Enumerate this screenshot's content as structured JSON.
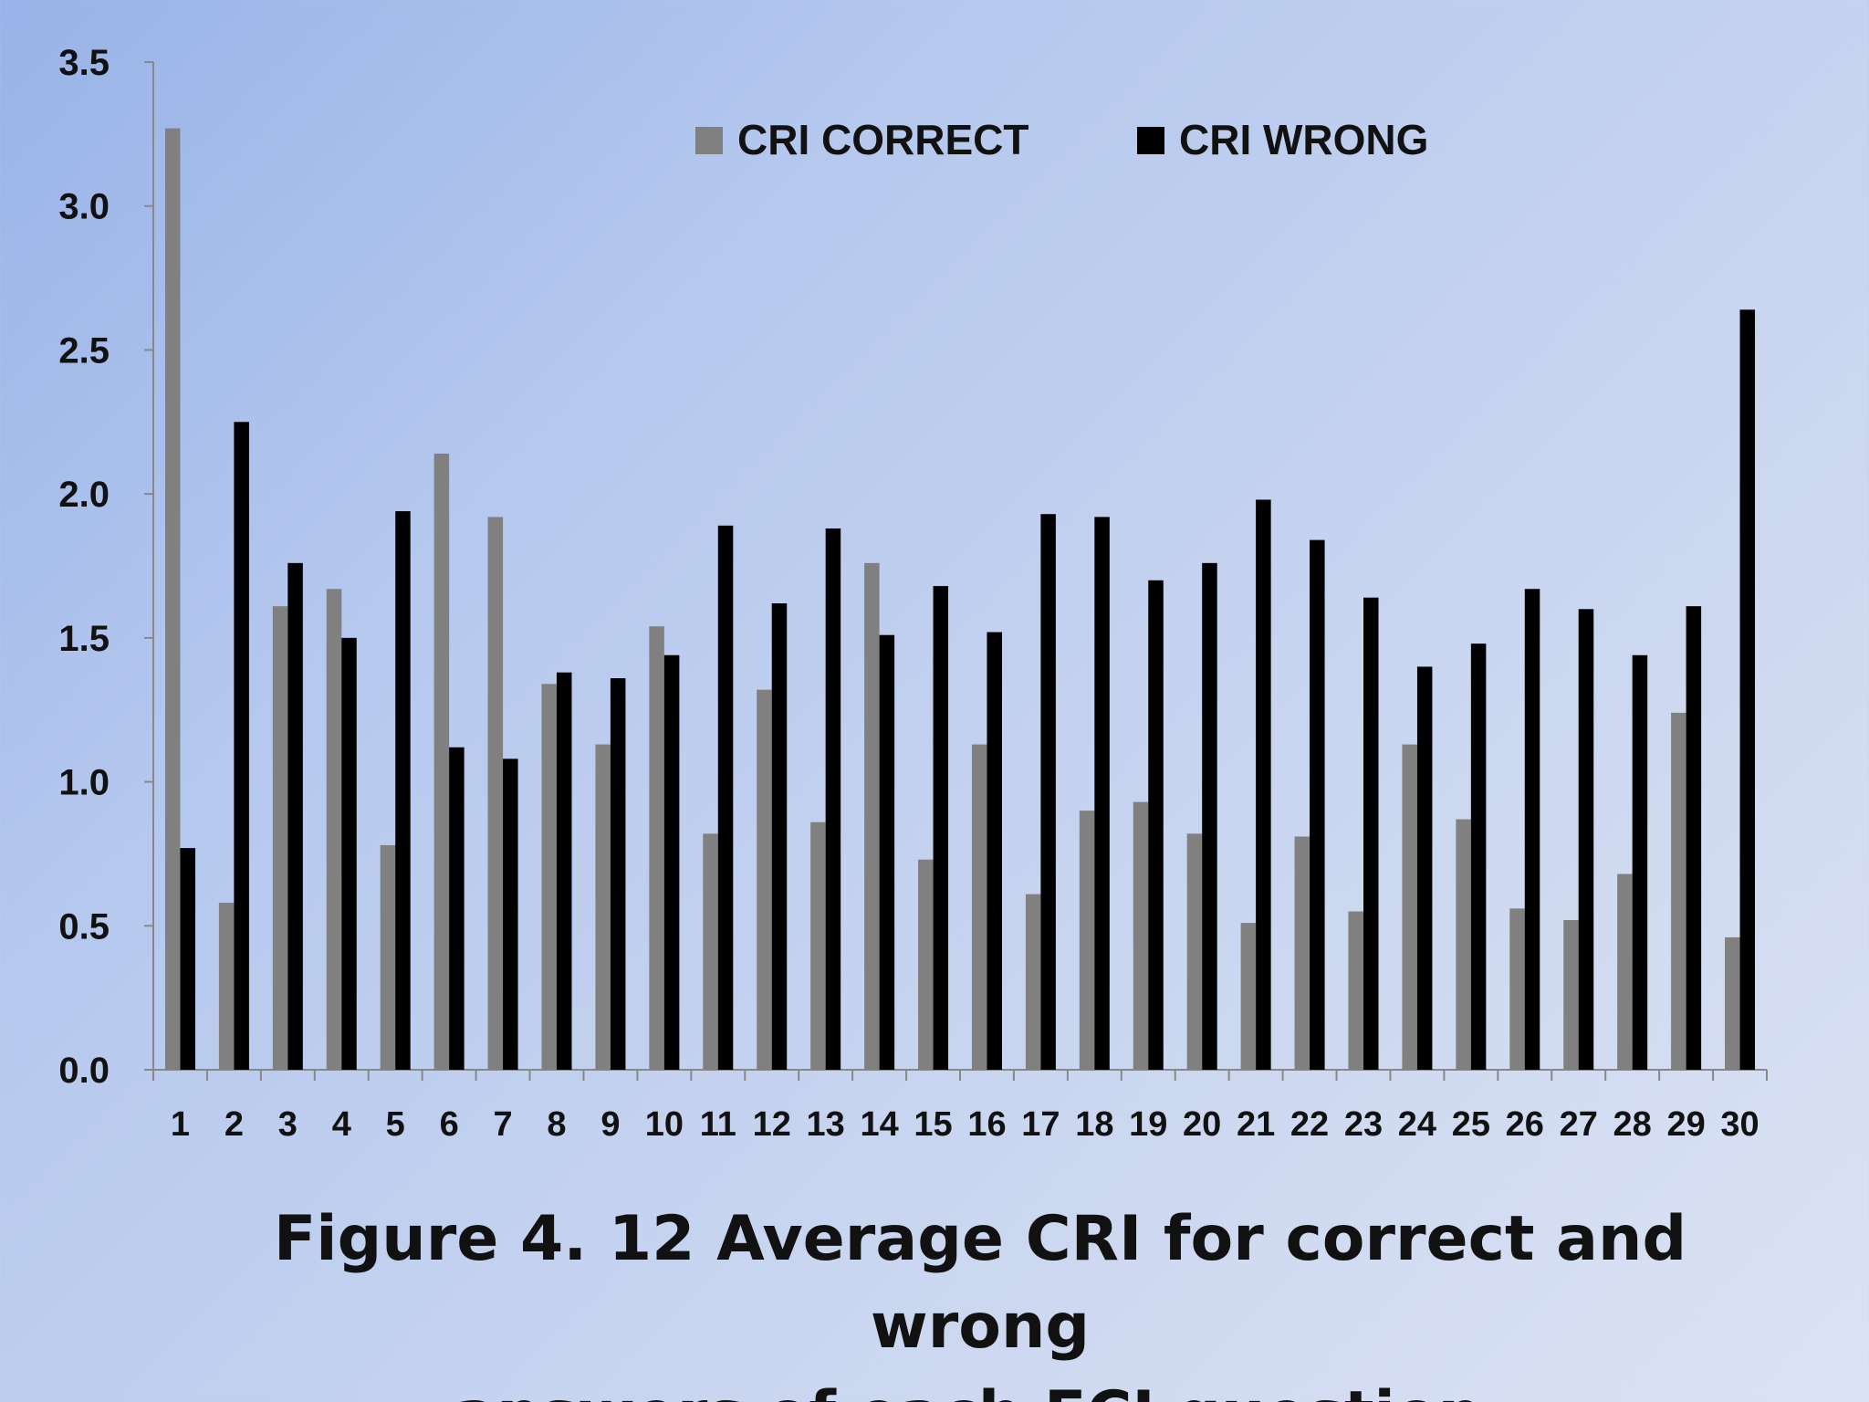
{
  "chart_data": {
    "type": "bar",
    "categories": [
      "1",
      "2",
      "3",
      "4",
      "5",
      "6",
      "7",
      "8",
      "9",
      "10",
      "11",
      "12",
      "13",
      "14",
      "15",
      "16",
      "17",
      "18",
      "19",
      "20",
      "21",
      "22",
      "23",
      "24",
      "25",
      "26",
      "27",
      "28",
      "29",
      "30"
    ],
    "series": [
      {
        "name": "CRI CORRECT",
        "color": "#808080",
        "values": [
          3.27,
          0.58,
          1.61,
          1.67,
          0.78,
          2.14,
          1.92,
          1.34,
          1.13,
          1.54,
          0.82,
          1.32,
          0.86,
          1.76,
          0.73,
          1.13,
          0.61,
          0.9,
          0.93,
          0.82,
          0.51,
          0.81,
          0.55,
          1.13,
          0.87,
          0.56,
          0.52,
          0.68,
          1.24,
          0.46
        ]
      },
      {
        "name": "CRI WRONG",
        "color": "#000000",
        "values": [
          0.77,
          2.25,
          1.76,
          1.5,
          1.94,
          1.12,
          1.08,
          1.38,
          1.36,
          1.44,
          1.89,
          1.62,
          1.88,
          1.51,
          1.68,
          1.52,
          1.93,
          1.92,
          1.7,
          1.76,
          1.98,
          1.84,
          1.64,
          1.4,
          1.48,
          1.67,
          1.6,
          1.44,
          1.61,
          2.64
        ]
      }
    ],
    "y_ticks": [
      "0.0",
      "0.5",
      "1.0",
      "1.5",
      "2.0",
      "2.5",
      "3.0",
      "3.5"
    ],
    "ylim": [
      0,
      3.5
    ],
    "legend_position": "top-center",
    "grid": false,
    "axis_color": "#888888"
  },
  "caption": {
    "line1": "Figure 4. 12 Average CRI for correct and wrong",
    "line2": "answers of each FCI question."
  }
}
